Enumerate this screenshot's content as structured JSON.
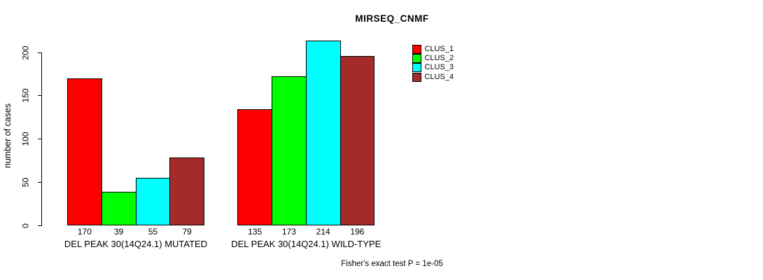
{
  "title": "MIRSEQ_CNMF",
  "footer": "Fisher's exact test P = 1e-05",
  "chart_data": {
    "type": "bar",
    "title": "MIRSEQ_CNMF",
    "xlabel": "",
    "ylabel": "number of cases",
    "categories": [
      "DEL PEAK 30(14Q24.1) MUTATED",
      "DEL PEAK 30(14Q24.1) WILD-TYPE"
    ],
    "series": [
      {
        "name": "CLUS_1",
        "color": "#FF0000",
        "values": [
          170,
          135
        ]
      },
      {
        "name": "CLUS_2",
        "color": "#00FF00",
        "values": [
          39,
          173
        ]
      },
      {
        "name": "CLUS_3",
        "color": "#00FFFF",
        "values": [
          55,
          214
        ]
      },
      {
        "name": "CLUS_4",
        "color": "#A52A2A",
        "values": [
          79,
          196
        ]
      }
    ],
    "bar_value_labels_shown": true,
    "yticks": [
      0,
      50,
      100,
      150,
      200
    ],
    "ylim": [
      0,
      220
    ],
    "grid": false,
    "legend_position": "top-right",
    "legend": [
      "CLUS_1",
      "CLUS_2",
      "CLUS_3",
      "CLUS_4"
    ],
    "annotation": "Fisher's exact test P = 1e-05",
    "axis_color": "#000000",
    "bar_border_color": "#000000"
  }
}
